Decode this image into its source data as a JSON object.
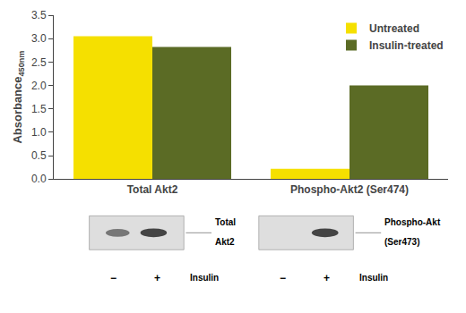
{
  "chart_data": {
    "type": "bar",
    "categories": [
      "Total Akt2",
      "Phospho-Akt2 (Ser474)"
    ],
    "series": [
      {
        "name": "Untreated",
        "color": "#F5E000",
        "values": [
          3.05,
          0.22
        ]
      },
      {
        "name": "Insulin-treated",
        "color": "#5B6B25",
        "values": [
          2.82,
          2.0
        ]
      }
    ],
    "y_label": "Absorbance",
    "y_label_subscript": "450nm",
    "ylim": [
      0,
      3.5
    ],
    "yticks": [
      {
        "value": 0,
        "label": "0.0"
      },
      0.5,
      {
        "value": 1.0,
        "label": "1.0"
      },
      1.5,
      {
        "value": 2.0,
        "label": "2.0"
      },
      2.5,
      {
        "value": 3.0,
        "label": "3.0"
      },
      3.5
    ],
    "grid": false,
    "legend": "upper right",
    "blots": [
      {
        "label": [
          "Total",
          "Akt2"
        ],
        "lane_labels": [
          "−",
          "+"
        ],
        "treatment": "Insulin"
      },
      {
        "label": [
          "Phospho-Akt",
          "(Ser473)"
        ],
        "lane_labels": [
          "−",
          "+"
        ],
        "treatment": "Insulin"
      }
    ]
  }
}
